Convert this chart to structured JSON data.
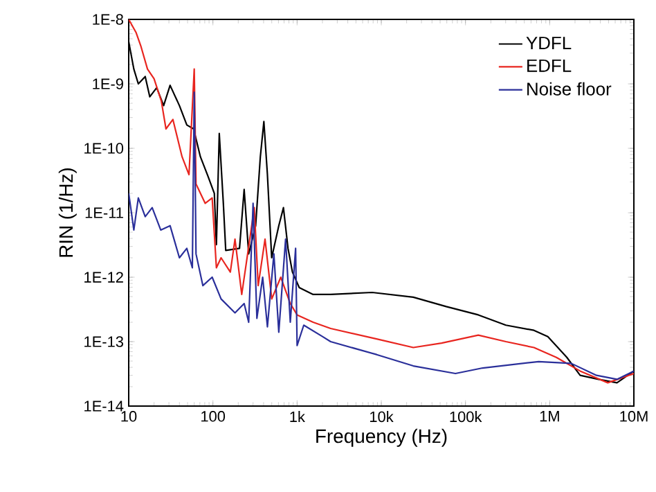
{
  "chart_data": {
    "type": "line",
    "xlabel": "Frequency (Hz)",
    "ylabel": "RIN (1/Hz)",
    "log": "xy",
    "legend": "top right",
    "marker": "none",
    "line_style": "solid",
    "xlim": [
      10,
      10000000
    ],
    "ylim": [
      1e-14,
      1e-08
    ],
    "xticks": [
      {
        "value": 10,
        "label": "10"
      },
      {
        "value": 100,
        "label": "100"
      },
      {
        "value": 1000,
        "label": "1k"
      },
      {
        "value": 10000,
        "label": "10k"
      },
      {
        "value": 100000,
        "label": "100k"
      },
      {
        "value": 1000000,
        "label": "1M"
      },
      {
        "value": 10000000,
        "label": "10M"
      }
    ],
    "yticks": [
      {
        "value": 1e-14,
        "label": "1E-14"
      },
      {
        "value": 1e-13,
        "label": "1E-13"
      },
      {
        "value": 1e-12,
        "label": "1E-12"
      },
      {
        "value": 1e-11,
        "label": "1E-11"
      },
      {
        "value": 1e-10,
        "label": "1E-10"
      },
      {
        "value": 1e-09,
        "label": "1E-9"
      },
      {
        "value": 1e-08,
        "label": "1E-8"
      }
    ],
    "series": [
      {
        "name": "YDFL",
        "color": "#000000",
        "x": [
          10,
          11.5,
          13,
          15.7,
          17.8,
          21.5,
          26,
          31,
          40,
          49,
          59,
          71,
          86,
          104,
          110,
          119,
          133,
          142,
          207,
          235,
          266,
          322,
          366,
          403,
          444,
          499,
          606,
          688,
          780,
          880,
          1060,
          1550,
          2500,
          7800,
          24000,
          59000,
          142000,
          302000,
          650000,
          950000,
          1600000,
          2300000,
          3800000,
          6300000,
          10000000
        ],
        "values": [
          4.5e-09,
          1.7e-09,
          1e-09,
          1.3e-09,
          6.3e-10,
          8.7e-10,
          4.6e-10,
          9.5e-10,
          4.6e-10,
          2.3e-10,
          2e-10,
          7.4e-11,
          3.9e-11,
          2e-11,
          3.2e-12,
          1.7e-10,
          1.4e-11,
          2.6e-12,
          2.8e-12,
          2.3e-11,
          2.3e-12,
          6.3e-12,
          7.4e-11,
          2.6e-10,
          3.9e-11,
          2e-12,
          6.3e-12,
          1.2e-11,
          2.8e-12,
          1.2e-12,
          6.9e-13,
          5.4e-13,
          5.4e-13,
          5.8e-13,
          4.9e-13,
          3.5e-13,
          2.6e-13,
          1.8e-13,
          1.5e-13,
          1.2e-13,
          5.7e-14,
          3e-14,
          2.6e-14,
          2.3e-14,
          3.5e-14
        ]
      },
      {
        "name": "EDFL",
        "color": "#e8251f",
        "x": [
          10,
          12.2,
          13.9,
          16.7,
          20,
          24.4,
          27.7,
          33.5,
          43,
          52,
          60,
          63,
          81,
          98,
          110,
          125,
          161,
          183,
          220,
          250,
          310,
          345,
          416,
          500,
          640,
          830,
          1000,
          1550,
          2500,
          8800,
          24000,
          52000,
          142000,
          302000,
          650000,
          1200000,
          2300000,
          4900000,
          10000000
        ],
        "values": [
          1e-08,
          6.3e-09,
          3.9e-09,
          1.7e-09,
          1.2e-09,
          5.4e-10,
          2e-10,
          2.8e-10,
          7.4e-11,
          3.9e-11,
          1.7e-09,
          2.8e-11,
          1.4e-11,
          1.7e-11,
          1.4e-12,
          2e-12,
          1.2e-12,
          3.9e-12,
          5.4e-13,
          1.7e-12,
          1.2e-11,
          7.4e-13,
          3.9e-12,
          4.6e-13,
          1e-12,
          3.9e-13,
          2.6e-13,
          2e-13,
          1.6e-13,
          1.1e-13,
          8.1e-14,
          9.5e-14,
          1.26e-13,
          1e-13,
          8.1e-14,
          5.7e-14,
          3.5e-14,
          2.3e-14,
          3.2e-14
        ]
      },
      {
        "name": "Noise floor",
        "color": "#2a2f9a",
        "x": [
          10,
          11.5,
          13,
          15.7,
          19,
          24,
          31,
          40,
          49,
          57,
          60,
          63,
          76,
          98,
          125,
          183,
          235,
          266,
          300,
          333,
          390,
          444,
          530,
          606,
          730,
          830,
          960,
          1000,
          1200,
          2000,
          2500,
          8800,
          24000,
          76000,
          160000,
          740000,
          1800000,
          3600000,
          6300000,
          10000000
        ],
        "values": [
          2e-11,
          5.4e-12,
          1.7e-11,
          8.7e-12,
          1.2e-11,
          5.4e-12,
          6.3e-12,
          2e-12,
          2.8e-12,
          1.4e-12,
          7.4e-10,
          2.3e-12,
          7.4e-13,
          1e-12,
          4.6e-13,
          2.8e-13,
          3.9e-13,
          2e-13,
          1.4e-11,
          2.3e-13,
          1e-12,
          1.7e-13,
          2.3e-12,
          1.4e-13,
          3.9e-12,
          2e-13,
          2.8e-12,
          8.7e-14,
          1.8e-13,
          1.2e-13,
          1e-13,
          6.3e-14,
          4.2e-14,
          3.2e-14,
          3.9e-14,
          4.9e-14,
          4.6e-14,
          3e-14,
          2.6e-14,
          3.5e-14
        ]
      }
    ]
  }
}
